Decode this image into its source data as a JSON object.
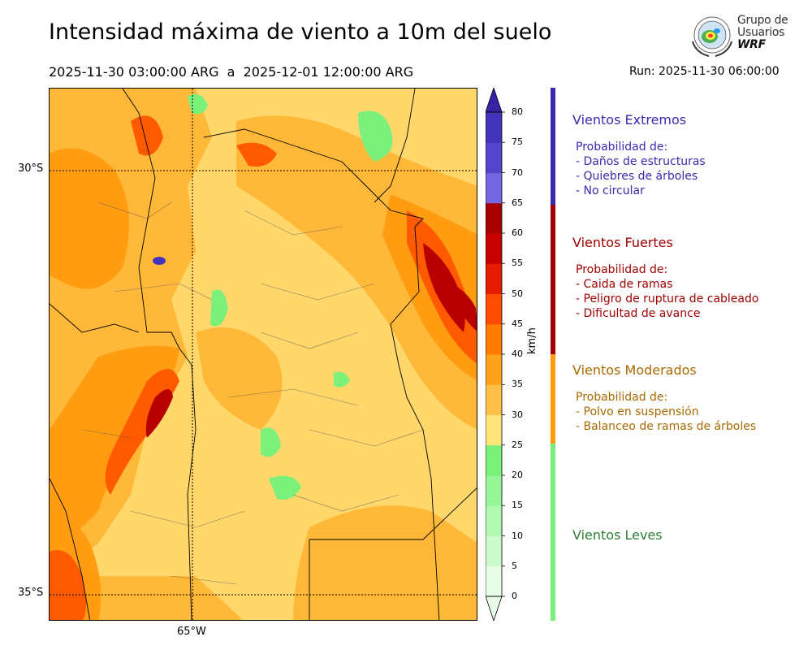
{
  "header": {
    "title": "Intensidad máxima de viento a 10m del suelo",
    "period": "2025-11-30 03:00:00 ARG  a  2025-12-01 12:00:00 ARG",
    "run": "Run: 2025-11-30 06:00:00"
  },
  "logo": {
    "line1": "Grupo de",
    "line2": "Usuarios",
    "line3": "WRF"
  },
  "map": {
    "lat_labels": [
      "30°S",
      "35°S"
    ],
    "lon_labels": [
      "65°W"
    ],
    "base_color": "#ffd76a"
  },
  "colorbar": {
    "unit": "km/h",
    "ticks": [
      "0",
      "5",
      "10",
      "15",
      "20",
      "25",
      "30",
      "35",
      "40",
      "45",
      "50",
      "55",
      "60",
      "65",
      "70",
      "75",
      "80"
    ],
    "colors": [
      "#e8fde8",
      "#cdfbcd",
      "#b3f8b3",
      "#98f598",
      "#79f079",
      "#ffe47a",
      "#ffc04a",
      "#ffa31a",
      "#ff7a00",
      "#ff4b00",
      "#e61a00",
      "#c80000",
      "#a80000",
      "#7366e0",
      "#5544cc",
      "#4433bb",
      "#3722a8"
    ]
  },
  "categories": [
    {
      "title": "Vientos Extremos",
      "color": "#3a2ab0",
      "lines": [
        "Probabilidad de:",
        "- Daños de estructuras",
        "- Quiebres de árboles",
        "- No circular"
      ]
    },
    {
      "title": "Vientos Fuertes",
      "color": "#a00000",
      "lines": [
        "Probabilidad de:",
        "- Caida de ramas",
        "- Peligro de ruptura de cableado",
        "- Dificultad de avance"
      ]
    },
    {
      "title": "Vientos Moderados",
      "color": "#a86a00",
      "lines": [
        "Probabilidad de:",
        "- Polvo en suspensión",
        "- Balanceo de ramas de árboles"
      ]
    },
    {
      "title": "Vientos Leves",
      "color": "#2e7d32",
      "lines": []
    }
  ]
}
